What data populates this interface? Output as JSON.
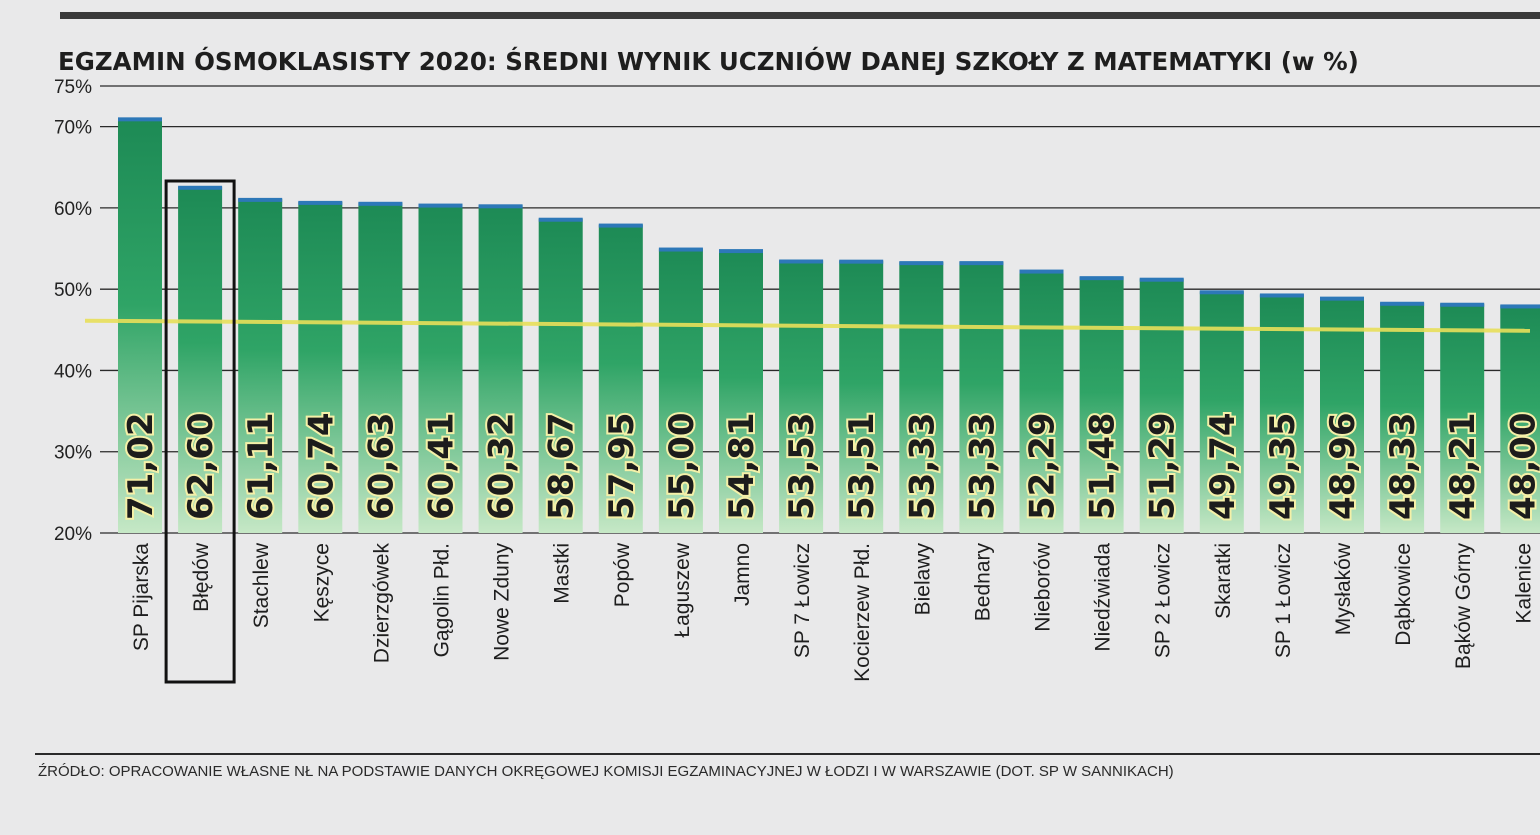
{
  "chart_data": {
    "type": "bar",
    "title": "EGZAMIN ÓSMOKLASISTY 2020: ŚREDNI WYNIK UCZNIÓW DANEJ SZKOŁY Z MATEMATYKI (w %)",
    "categories": [
      "SP Pijarska",
      "Błędów",
      "Stachlew",
      "Kęszyce",
      "Dzierzgówek",
      "Gągolin Płd.",
      "Nowe Zduny",
      "Mastki",
      "Popów",
      "Łaguszew",
      "Jamno",
      "SP 7 Łowicz",
      "Kocierzew Płd.",
      "Bielawy",
      "Bednary",
      "Nieborów",
      "Niedźwiada",
      "SP 2 Łowicz",
      "Skaratki",
      "SP 1 Łowicz",
      "Mysłaków",
      "Dąbkowice",
      "Bąków Górny",
      "Kalenice"
    ],
    "values": [
      71.02,
      62.6,
      61.11,
      60.74,
      60.63,
      60.41,
      60.32,
      58.67,
      57.95,
      55.0,
      54.81,
      53.53,
      53.51,
      53.33,
      53.33,
      52.29,
      51.48,
      51.29,
      49.74,
      49.35,
      48.96,
      48.33,
      48.21,
      48.0
    ],
    "value_labels": [
      "71,02",
      "62,60",
      "61,11",
      "60,74",
      "60,63",
      "60,41",
      "60,32",
      "58,67",
      "57,95",
      "55,00",
      "54,81",
      "53,53",
      "53,51",
      "53,33",
      "53,33",
      "52,29",
      "51,48",
      "51,29",
      "49,74",
      "49,35",
      "48,96",
      "48,33",
      "48,21",
      "48,00"
    ],
    "yticks": [
      20,
      30,
      40,
      50,
      60,
      70,
      75
    ],
    "ytick_labels": [
      "20%",
      "30%",
      "40%",
      "50%",
      "60%",
      "70%",
      "75%"
    ],
    "ylim": [
      20,
      75
    ],
    "reference_line": 45.5,
    "highlighted_category": "Błędów",
    "xlabel": "",
    "ylabel": "",
    "grid": true,
    "colors": {
      "bar_top": "#1d8a55",
      "bar_bottom": "#c6e8c6",
      "bar_cap": "#2d78b8",
      "reference_line": "#e8e05a",
      "grid": "#2a2a2a",
      "highlight": "#111111",
      "value_outline": "#f4f0a8"
    }
  },
  "source": "ŹRÓDŁO: OPRACOWANIE WŁASNE NŁ NA PODSTAWIE DANYCH OKRĘGOWEJ KOMISJI EGZAMINACYJNEJ W ŁODZI I W WARSZAWIE (DOT. SP W SANNIKACH)"
}
